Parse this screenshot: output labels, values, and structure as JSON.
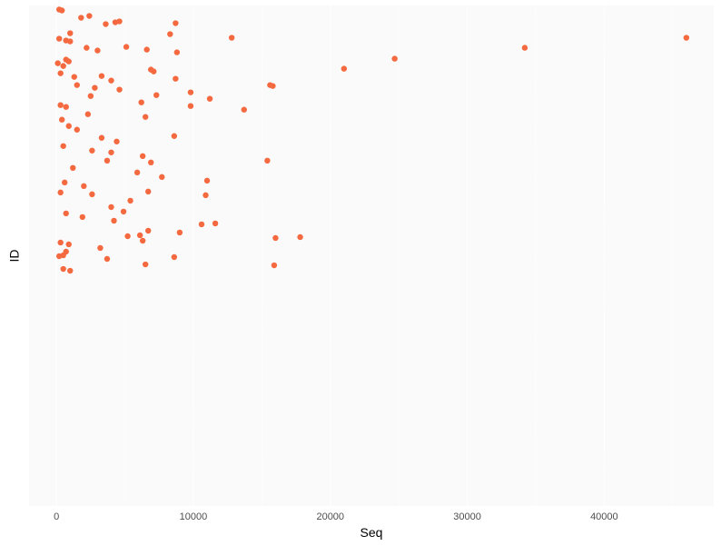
{
  "chart_data": {
    "type": "scatter",
    "xlabel": "Seq",
    "ylabel": "ID",
    "xlim": [
      -2000,
      48000
    ],
    "x_ticks": [
      0,
      10000,
      20000,
      30000,
      40000
    ],
    "x_tick_labels": [
      "0",
      "10000",
      "20000",
      "30000",
      "40000"
    ],
    "y_ticks": "one gridline per ID category, no tick labels",
    "grid": true,
    "legend": "none",
    "colors": {
      "point": "#f4693f",
      "panel": "#f7f7f7",
      "grid": "#ffffff"
    },
    "points": [
      {
        "x": 200,
        "y": 546
      },
      {
        "x": 400,
        "y": 545
      },
      {
        "x": 1800,
        "y": 537
      },
      {
        "x": 2400,
        "y": 539
      },
      {
        "x": 3600,
        "y": 530
      },
      {
        "x": 4300,
        "y": 532
      },
      {
        "x": 4600,
        "y": 533
      },
      {
        "x": 8700,
        "y": 531
      },
      {
        "x": 8300,
        "y": 519
      },
      {
        "x": 1000,
        "y": 520
      },
      {
        "x": 12800,
        "y": 515
      },
      {
        "x": 46000,
        "y": 515
      },
      {
        "x": 200,
        "y": 514
      },
      {
        "x": 700,
        "y": 512
      },
      {
        "x": 1000,
        "y": 511
      },
      {
        "x": 5100,
        "y": 505
      },
      {
        "x": 6600,
        "y": 502
      },
      {
        "x": 34200,
        "y": 504
      },
      {
        "x": 2200,
        "y": 504
      },
      {
        "x": 3000,
        "y": 501
      },
      {
        "x": 8800,
        "y": 499
      },
      {
        "x": 24700,
        "y": 492
      },
      {
        "x": 700,
        "y": 491
      },
      {
        "x": 900,
        "y": 489
      },
      {
        "x": 100,
        "y": 487
      },
      {
        "x": 500,
        "y": 484
      },
      {
        "x": 6900,
        "y": 480
      },
      {
        "x": 7100,
        "y": 478
      },
      {
        "x": 21000,
        "y": 481
      },
      {
        "x": 300,
        "y": 476
      },
      {
        "x": 1300,
        "y": 472
      },
      {
        "x": 3300,
        "y": 473
      },
      {
        "x": 4000,
        "y": 468
      },
      {
        "x": 8700,
        "y": 470
      },
      {
        "x": 15600,
        "y": 463
      },
      {
        "x": 15800,
        "y": 462
      },
      {
        "x": 1500,
        "y": 463
      },
      {
        "x": 2800,
        "y": 460
      },
      {
        "x": 4600,
        "y": 458
      },
      {
        "x": 9800,
        "y": 455
      },
      {
        "x": 7300,
        "y": 452
      },
      {
        "x": 11200,
        "y": 448
      },
      {
        "x": 2500,
        "y": 451
      },
      {
        "x": 6200,
        "y": 444
      },
      {
        "x": 9800,
        "y": 440
      },
      {
        "x": 13700,
        "y": 436
      },
      {
        "x": 300,
        "y": 441
      },
      {
        "x": 700,
        "y": 439
      },
      {
        "x": 2300,
        "y": 431
      },
      {
        "x": 6500,
        "y": 428
      },
      {
        "x": 400,
        "y": 425
      },
      {
        "x": 900,
        "y": 418
      },
      {
        "x": 1500,
        "y": 414
      },
      {
        "x": 8600,
        "y": 407
      },
      {
        "x": 4400,
        "y": 401
      },
      {
        "x": 3300,
        "y": 405
      },
      {
        "x": 500,
        "y": 396
      },
      {
        "x": 2600,
        "y": 391
      },
      {
        "x": 4000,
        "y": 389
      },
      {
        "x": 6300,
        "y": 385
      },
      {
        "x": 6900,
        "y": 378
      },
      {
        "x": 3700,
        "y": 380
      },
      {
        "x": 15400,
        "y": 380
      },
      {
        "x": 1200,
        "y": 372
      },
      {
        "x": 5900,
        "y": 367
      },
      {
        "x": 7700,
        "y": 362
      },
      {
        "x": 11000,
        "y": 358
      },
      {
        "x": 600,
        "y": 356
      },
      {
        "x": 2000,
        "y": 352
      },
      {
        "x": 6700,
        "y": 346
      },
      {
        "x": 10900,
        "y": 342
      },
      {
        "x": 300,
        "y": 345
      },
      {
        "x": 2600,
        "y": 343
      },
      {
        "x": 5400,
        "y": 336
      },
      {
        "x": 4000,
        "y": 329
      },
      {
        "x": 4900,
        "y": 324
      },
      {
        "x": 700,
        "y": 322
      },
      {
        "x": 1900,
        "y": 318
      },
      {
        "x": 4200,
        "y": 314
      },
      {
        "x": 11600,
        "y": 311
      },
      {
        "x": 10600,
        "y": 310
      },
      {
        "x": 6700,
        "y": 303
      },
      {
        "x": 9000,
        "y": 301
      },
      {
        "x": 5200,
        "y": 297
      },
      {
        "x": 6100,
        "y": 298
      },
      {
        "x": 17800,
        "y": 296
      },
      {
        "x": 16000,
        "y": 295
      },
      {
        "x": 6300,
        "y": 292
      },
      {
        "x": 300,
        "y": 290
      },
      {
        "x": 900,
        "y": 288
      },
      {
        "x": 3200,
        "y": 284
      },
      {
        "x": 700,
        "y": 280
      },
      {
        "x": 8600,
        "y": 274
      },
      {
        "x": 3700,
        "y": 272
      },
      {
        "x": 200,
        "y": 275
      },
      {
        "x": 500,
        "y": 276
      },
      {
        "x": 6500,
        "y": 266
      },
      {
        "x": 15900,
        "y": 265
      },
      {
        "x": 500,
        "y": 261
      },
      {
        "x": 1000,
        "y": 259
      }
    ]
  }
}
